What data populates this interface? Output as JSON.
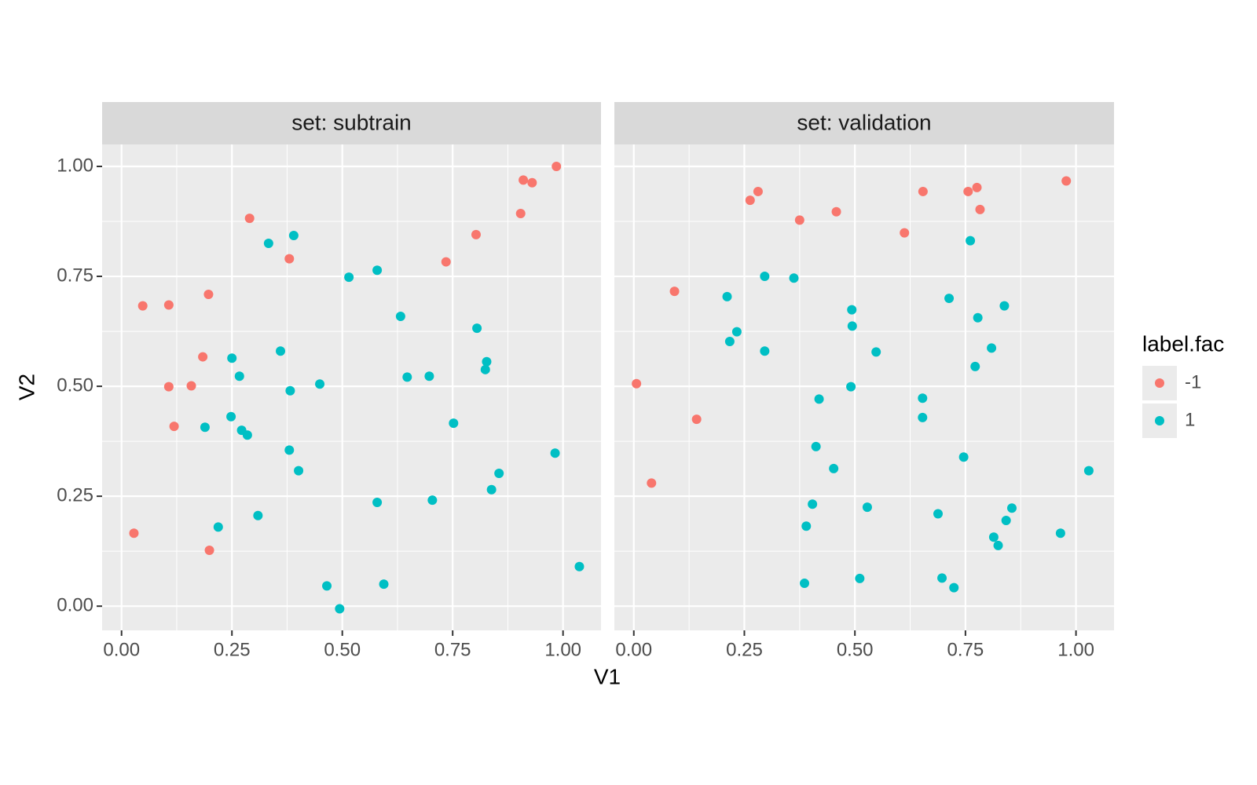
{
  "chart_data": {
    "type": "scatter",
    "xlabel": "V1",
    "ylabel": "V2",
    "legend_title": "label.fac",
    "xlim": [
      -0.044,
      1.086
    ],
    "ylim": [
      -0.055,
      1.05
    ],
    "xticks": [
      {
        "value": 0,
        "label": "0.00"
      },
      {
        "value": 0.25,
        "label": "0.25"
      },
      {
        "value": 0.5,
        "label": "0.50"
      },
      {
        "value": 0.75,
        "label": "0.75"
      },
      {
        "value": 1,
        "label": "1.00"
      }
    ],
    "yticks": [
      {
        "value": 0,
        "label": "0.00"
      },
      {
        "value": 0.25,
        "label": "0.25"
      },
      {
        "value": 0.5,
        "label": "0.50"
      },
      {
        "value": 0.75,
        "label": "0.75"
      },
      {
        "value": 1,
        "label": "1.00"
      }
    ],
    "grid": true,
    "series": [
      {
        "name": "-1",
        "color": "#f8766d"
      },
      {
        "name": "1",
        "color": "#00bfc4"
      }
    ],
    "facets": [
      {
        "title": "set: subtrain",
        "series": [
          {
            "x": [
              0.985,
              0.91,
              0.93,
              0.904,
              0.803,
              0.735,
              0.29,
              0.38,
              0.197,
              0.048,
              0.107,
              0.184,
              0.107,
              0.158,
              0.119,
              0.028,
              0.199
            ],
            "y": [
              1.0,
              0.969,
              0.963,
              0.893,
              0.845,
              0.783,
              0.882,
              0.79,
              0.709,
              0.683,
              0.685,
              0.567,
              0.499,
              0.501,
              0.409,
              0.166,
              0.127
            ]
          },
          {
            "x": [
              0.39,
              0.333,
              0.515,
              0.579,
              0.632,
              0.805,
              0.827,
              0.824,
              0.647,
              0.697,
              0.36,
              0.25,
              0.267,
              0.449,
              0.382,
              0.248,
              0.189,
              0.272,
              0.285,
              0.752,
              0.38,
              0.401,
              0.982,
              0.855,
              0.838,
              0.704,
              0.579,
              0.309,
              0.219,
              1.037,
              0.465,
              0.594,
              0.494
            ],
            "y": [
              0.843,
              0.825,
              0.748,
              0.764,
              0.659,
              0.632,
              0.556,
              0.538,
              0.521,
              0.523,
              0.58,
              0.564,
              0.523,
              0.505,
              0.49,
              0.431,
              0.407,
              0.4,
              0.389,
              0.416,
              0.355,
              0.308,
              0.348,
              0.302,
              0.265,
              0.241,
              0.236,
              0.206,
              0.18,
              0.09,
              0.046,
              0.05,
              -0.006
            ]
          }
        ]
      },
      {
        "title": "set: validation",
        "series": [
          {
            "x": [
              0.978,
              0.281,
              0.263,
              0.654,
              0.756,
              0.776,
              0.783,
              0.458,
              0.375,
              0.612,
              0.092,
              0.006,
              0.142,
              0.04
            ],
            "y": [
              0.967,
              0.943,
              0.923,
              0.943,
              0.943,
              0.952,
              0.902,
              0.897,
              0.878,
              0.849,
              0.716,
              0.506,
              0.425,
              0.28
            ]
          },
          {
            "x": [
              0.761,
              0.296,
              0.362,
              0.211,
              0.713,
              0.838,
              0.778,
              0.493,
              0.494,
              0.233,
              0.217,
              0.296,
              0.548,
              0.809,
              0.772,
              0.491,
              0.419,
              0.653,
              0.653,
              0.412,
              0.746,
              0.452,
              1.029,
              0.404,
              0.528,
              0.855,
              0.688,
              0.842,
              0.39,
              0.814,
              0.824,
              0.965,
              0.386,
              0.511,
              0.697,
              0.724
            ],
            "y": [
              0.831,
              0.75,
              0.746,
              0.704,
              0.7,
              0.683,
              0.656,
              0.674,
              0.637,
              0.624,
              0.602,
              0.58,
              0.578,
              0.587,
              0.545,
              0.499,
              0.471,
              0.473,
              0.429,
              0.363,
              0.339,
              0.313,
              0.308,
              0.232,
              0.225,
              0.223,
              0.21,
              0.195,
              0.182,
              0.157,
              0.138,
              0.166,
              0.052,
              0.063,
              0.064,
              0.042
            ]
          }
        ]
      }
    ]
  }
}
